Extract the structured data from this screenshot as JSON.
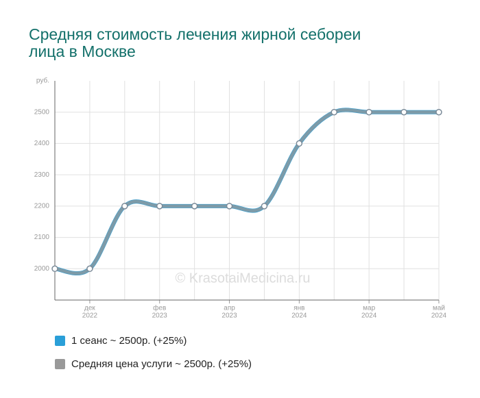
{
  "chart_data": {
    "type": "line",
    "title": [
      "Средняя стоимость лечения жирной себореи",
      "лица в Москве"
    ],
    "y_unit": "руб.",
    "watermark": "© KrasotaiMedicina.ru",
    "categories": [
      null,
      [
        "дек",
        "2022"
      ],
      null,
      [
        "фев",
        "2023"
      ],
      null,
      [
        "апр",
        "2023"
      ],
      null,
      [
        "янв",
        "2024"
      ],
      null,
      [
        "мар",
        "2024"
      ],
      null,
      [
        "май",
        "2024"
      ]
    ],
    "series": [
      {
        "name": "1 сеанс ~ 2500р. (+25%)",
        "color": "#2a9fd8",
        "values": [
          2000,
          2000,
          2200,
          2200,
          2200,
          2200,
          2200,
          2400,
          2500,
          2500,
          2500,
          2500
        ]
      },
      {
        "name": "Средняя цена услуги ~ 2500р. (+25%)",
        "color": "#999999",
        "values": [
          2000,
          2000,
          2200,
          2200,
          2200,
          2200,
          2200,
          2400,
          2500,
          2500,
          2500,
          2500
        ]
      }
    ],
    "ylim": [
      1900,
      2600
    ],
    "yticks": [
      2000,
      2100,
      2200,
      2300,
      2400,
      2500
    ],
    "grid": true
  }
}
